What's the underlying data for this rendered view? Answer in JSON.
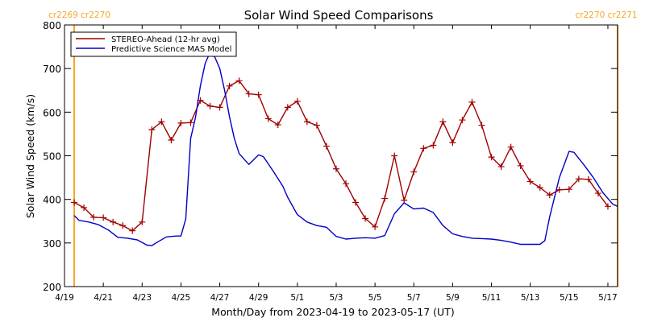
{
  "chart_data": {
    "type": "line",
    "title": "Solar Wind Speed Comparisons",
    "xlabel": "Month/Day from 2023-04-19 to 2023-05-17 (UT)",
    "ylabel": "Solar Wind Speed (km/s)",
    "ylim": [
      200,
      800
    ],
    "xlim": [
      "2023-04-19T00:00",
      "2023-05-17T12:00"
    ],
    "x_ticks": [
      {
        "date": "2023-04-19",
        "label": "4/19"
      },
      {
        "date": "2023-04-21",
        "label": "4/21"
      },
      {
        "date": "2023-04-23",
        "label": "4/23"
      },
      {
        "date": "2023-04-25",
        "label": "4/25"
      },
      {
        "date": "2023-04-27",
        "label": "4/27"
      },
      {
        "date": "2023-04-29",
        "label": "4/29"
      },
      {
        "date": "2023-05-01",
        "label": "5/1"
      },
      {
        "date": "2023-05-03",
        "label": "5/3"
      },
      {
        "date": "2023-05-05",
        "label": "5/5"
      },
      {
        "date": "2023-05-07",
        "label": "5/7"
      },
      {
        "date": "2023-05-09",
        "label": "5/9"
      },
      {
        "date": "2023-05-11",
        "label": "5/11"
      },
      {
        "date": "2023-05-13",
        "label": "5/13"
      },
      {
        "date": "2023-05-15",
        "label": "5/15"
      },
      {
        "date": "2023-05-17",
        "label": "5/17"
      }
    ],
    "y_ticks": [
      200,
      300,
      400,
      500,
      600,
      700,
      800
    ],
    "grid": false,
    "legend": "top-left",
    "carrington_markers": [
      {
        "date": "2023-04-19T12:00",
        "label": "cr2269 cr2270",
        "color": "#f5a623"
      },
      {
        "date": "2023-05-17T12:00",
        "label": "cr2270 cr2271",
        "color": "#f5a623"
      }
    ],
    "series": [
      {
        "name": "STEREO-Ahead (12-hr avg)",
        "color": "#a00000",
        "marker": "plus",
        "points": [
          [
            "2023-04-19T12:00",
            393
          ],
          [
            "2023-04-20T00:00",
            381
          ],
          [
            "2023-04-20T12:00",
            359
          ],
          [
            "2023-04-21T00:00",
            358
          ],
          [
            "2023-04-21T12:00",
            348
          ],
          [
            "2023-04-22T00:00",
            340
          ],
          [
            "2023-04-22T12:00",
            328
          ],
          [
            "2023-04-23T00:00",
            348
          ],
          [
            "2023-04-23T12:00",
            560
          ],
          [
            "2023-04-24T00:00",
            578
          ],
          [
            "2023-04-24T12:00",
            536
          ],
          [
            "2023-04-25T00:00",
            575
          ],
          [
            "2023-04-25T12:00",
            576
          ],
          [
            "2023-04-26T00:00",
            627
          ],
          [
            "2023-04-26T12:00",
            614
          ],
          [
            "2023-04-27T00:00",
            611
          ],
          [
            "2023-04-27T12:00",
            660
          ],
          [
            "2023-04-28T00:00",
            672
          ],
          [
            "2023-04-28T12:00",
            642
          ],
          [
            "2023-04-29T00:00",
            640
          ],
          [
            "2023-04-29T12:00",
            585
          ],
          [
            "2023-04-30T00:00",
            571
          ],
          [
            "2023-04-30T12:00",
            611
          ],
          [
            "2023-05-01T00:00",
            625
          ],
          [
            "2023-05-01T12:00",
            578
          ],
          [
            "2023-05-02T00:00",
            570
          ],
          [
            "2023-05-02T12:00",
            522
          ],
          [
            "2023-05-03T00:00",
            470
          ],
          [
            "2023-05-03T12:00",
            436
          ],
          [
            "2023-05-04T00:00",
            393
          ],
          [
            "2023-05-04T12:00",
            356
          ],
          [
            "2023-05-05T00:00",
            337
          ],
          [
            "2023-05-05T12:00",
            402
          ],
          [
            "2023-05-06T00:00",
            500
          ],
          [
            "2023-05-06T12:00",
            398
          ],
          [
            "2023-05-07T00:00",
            463
          ],
          [
            "2023-05-07T12:00",
            517
          ],
          [
            "2023-05-08T00:00",
            524
          ],
          [
            "2023-05-08T12:00",
            578
          ],
          [
            "2023-05-09T00:00",
            530
          ],
          [
            "2023-05-09T12:00",
            582
          ],
          [
            "2023-05-10T00:00",
            623
          ],
          [
            "2023-05-10T12:00",
            570
          ],
          [
            "2023-05-11T00:00",
            497
          ],
          [
            "2023-05-11T12:00",
            475
          ],
          [
            "2023-05-12T00:00",
            520
          ],
          [
            "2023-05-12T12:00",
            477
          ],
          [
            "2023-05-13T00:00",
            441
          ],
          [
            "2023-05-13T12:00",
            427
          ],
          [
            "2023-05-14T00:00",
            410
          ],
          [
            "2023-05-14T12:00",
            422
          ],
          [
            "2023-05-15T00:00",
            423
          ],
          [
            "2023-05-15T12:00",
            447
          ],
          [
            "2023-05-16T00:00",
            446
          ],
          [
            "2023-05-16T12:00",
            414
          ],
          [
            "2023-05-17T00:00",
            384
          ]
        ]
      },
      {
        "name": "Predictive Science MAS Model",
        "color": "#0000c8",
        "marker": "none",
        "points": [
          [
            "2023-04-19T12:00",
            363
          ],
          [
            "2023-04-19T18:00",
            352
          ],
          [
            "2023-04-20T06:00",
            348
          ],
          [
            "2023-04-20T18:00",
            342
          ],
          [
            "2023-04-21T06:00",
            330
          ],
          [
            "2023-04-21T18:00",
            313
          ],
          [
            "2023-04-22T06:00",
            311
          ],
          [
            "2023-04-22T18:00",
            307
          ],
          [
            "2023-04-23T06:00",
            295
          ],
          [
            "2023-04-23T12:00",
            294
          ],
          [
            "2023-04-23T18:00",
            301
          ],
          [
            "2023-04-24T06:00",
            314
          ],
          [
            "2023-04-24T18:00",
            316
          ],
          [
            "2023-04-25T00:00",
            316
          ],
          [
            "2023-04-25T06:00",
            355
          ],
          [
            "2023-04-25T12:00",
            540
          ],
          [
            "2023-04-25T18:00",
            588
          ],
          [
            "2023-04-26T00:00",
            660
          ],
          [
            "2023-04-26T06:00",
            712
          ],
          [
            "2023-04-26T12:00",
            737
          ],
          [
            "2023-04-26T18:00",
            726
          ],
          [
            "2023-04-27T00:00",
            700
          ],
          [
            "2023-04-27T06:00",
            650
          ],
          [
            "2023-04-27T12:00",
            590
          ],
          [
            "2023-04-27T18:00",
            540
          ],
          [
            "2023-04-28T00:00",
            505
          ],
          [
            "2023-04-28T12:00",
            480
          ],
          [
            "2023-04-29T00:00",
            502
          ],
          [
            "2023-04-29T06:00",
            498
          ],
          [
            "2023-04-29T18:00",
            465
          ],
          [
            "2023-04-30T06:00",
            430
          ],
          [
            "2023-04-30T12:00",
            405
          ],
          [
            "2023-05-01T00:00",
            365
          ],
          [
            "2023-05-01T12:00",
            348
          ],
          [
            "2023-05-02T00:00",
            340
          ],
          [
            "2023-05-02T12:00",
            336
          ],
          [
            "2023-05-03T00:00",
            315
          ],
          [
            "2023-05-03T12:00",
            309
          ],
          [
            "2023-05-04T00:00",
            311
          ],
          [
            "2023-05-04T12:00",
            312
          ],
          [
            "2023-05-05T00:00",
            311
          ],
          [
            "2023-05-05T12:00",
            317
          ],
          [
            "2023-05-06T00:00",
            367
          ],
          [
            "2023-05-06T12:00",
            392
          ],
          [
            "2023-05-07T00:00",
            378
          ],
          [
            "2023-05-07T12:00",
            380
          ],
          [
            "2023-05-08T00:00",
            370
          ],
          [
            "2023-05-08T12:00",
            340
          ],
          [
            "2023-05-09T00:00",
            321
          ],
          [
            "2023-05-09T12:00",
            315
          ],
          [
            "2023-05-10T00:00",
            311
          ],
          [
            "2023-05-10T12:00",
            310
          ],
          [
            "2023-05-11T00:00",
            309
          ],
          [
            "2023-05-11T12:00",
            306
          ],
          [
            "2023-05-12T00:00",
            302
          ],
          [
            "2023-05-12T12:00",
            297
          ],
          [
            "2023-05-13T00:00",
            297
          ],
          [
            "2023-05-13T12:00",
            297
          ],
          [
            "2023-05-13T18:00",
            305
          ],
          [
            "2023-05-14T00:00",
            360
          ],
          [
            "2023-05-14T12:00",
            450
          ],
          [
            "2023-05-15T00:00",
            510
          ],
          [
            "2023-05-15T06:00",
            508
          ],
          [
            "2023-05-15T18:00",
            480
          ],
          [
            "2023-05-16T06:00",
            450
          ],
          [
            "2023-05-16T18:00",
            415
          ],
          [
            "2023-05-17T06:00",
            389
          ],
          [
            "2023-05-17T12:00",
            384
          ]
        ]
      }
    ]
  }
}
